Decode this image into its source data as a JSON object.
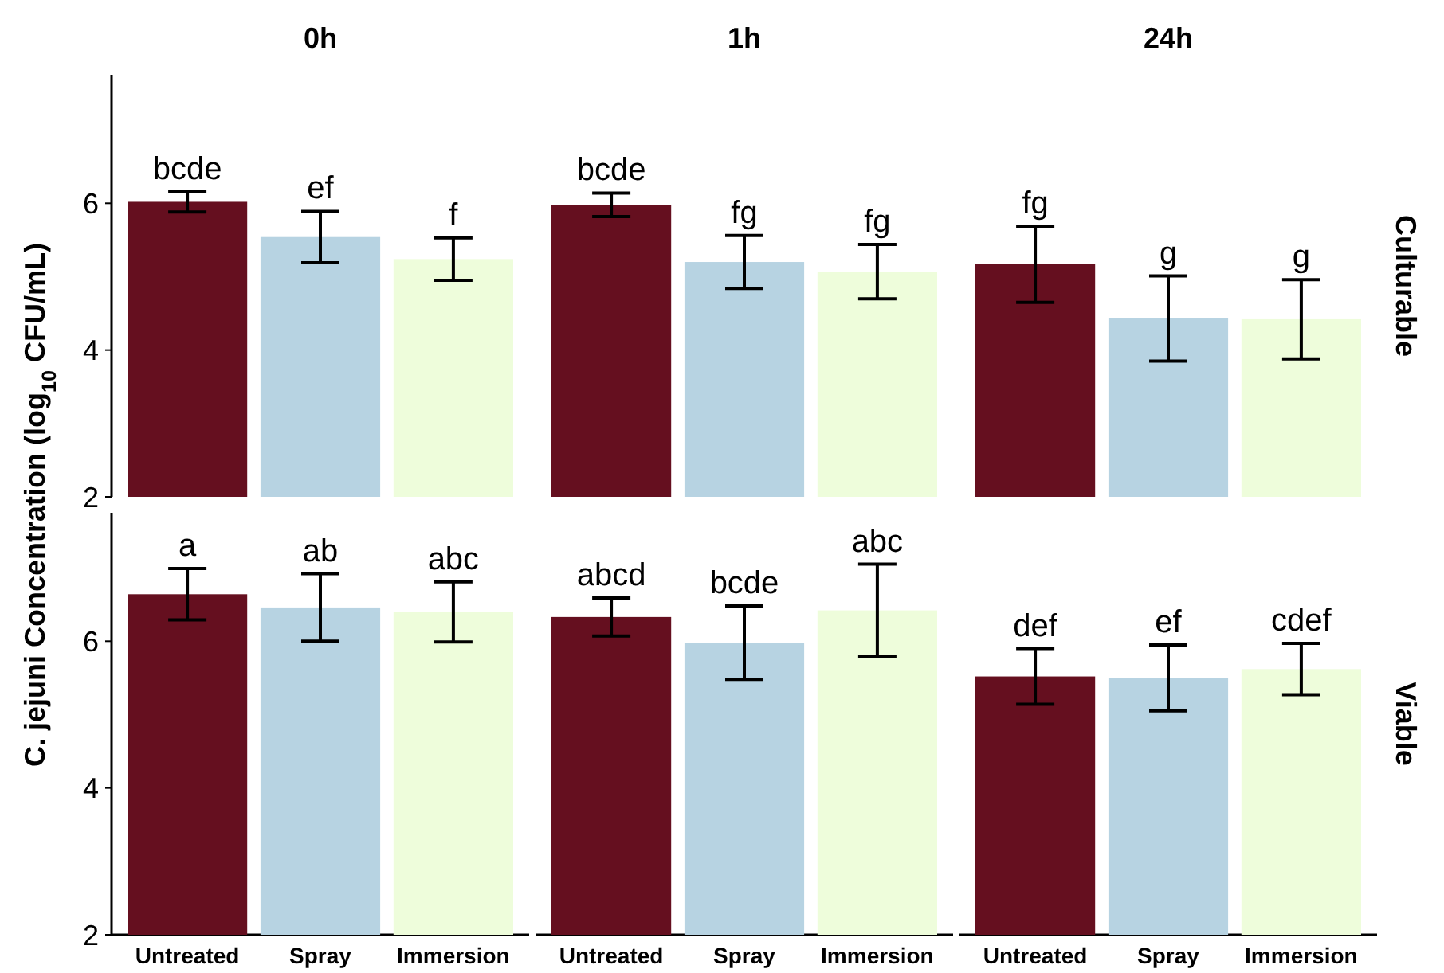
{
  "chart_data": [
    {
      "type": "bar",
      "title": "Culturable",
      "ylabel": "C. jejuni Concentration (log$_{10}$ CFU/mL)",
      "annotations": [
        "0h",
        "1h",
        "24h"
      ],
      "categories": [
        null,
        null,
        null,
        null,
        null,
        null,
        null,
        null,
        null
      ],
      "values": [
        6.02,
        5.54,
        5.24,
        5.98,
        5.2,
        5.07,
        5.17,
        4.43,
        4.42
      ],
      "errors": [
        0.14,
        0.35,
        0.29,
        0.16,
        0.36,
        0.37,
        0.52,
        0.58,
        0.54
      ],
      "colors": [
        "#650f1f",
        "#b7d3e2",
        "#eefddb",
        "#650f1f",
        "#b7d3e2",
        "#eefddb",
        "#650f1f",
        "#b7d3e2",
        "#eefddb"
      ],
      "value_labels": [
        "bcde",
        "ef",
        "f",
        "bcde",
        "fg",
        "fg",
        "fg",
        "g",
        "g"
      ],
      "ylim": [
        2,
        7.75
      ],
      "yticks": [
        2,
        4,
        6
      ],
      "tick_labels": "y"
    },
    {
      "type": "bar",
      "title": "Viable",
      "categories": [
        "Untreated",
        "Spray",
        "Immersion",
        "Untreated",
        "Spray",
        "Immersion",
        "Untreated",
        "Spray",
        "Immersion"
      ],
      "values": [
        6.64,
        6.46,
        6.4,
        6.33,
        5.98,
        6.42,
        5.52,
        5.5,
        5.62
      ],
      "errors": [
        0.35,
        0.46,
        0.41,
        0.26,
        0.5,
        0.63,
        0.38,
        0.45,
        0.35
      ],
      "colors": [
        "#650f1f",
        "#b7d3e2",
        "#eefddb",
        "#650f1f",
        "#b7d3e2",
        "#eefddb",
        "#650f1f",
        "#b7d3e2",
        "#eefddb"
      ],
      "value_labels": [
        "a",
        "ab",
        "abc",
        "abcd",
        "bcde",
        "abc",
        "def",
        "ef",
        "cdef"
      ],
      "ylim": [
        2,
        7.75
      ],
      "yticks": [
        2,
        4,
        6
      ]
    }
  ]
}
